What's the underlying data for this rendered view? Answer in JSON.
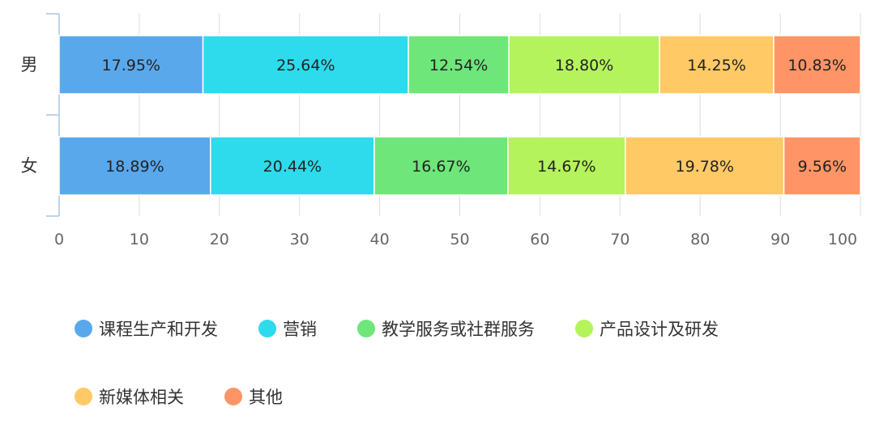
{
  "chart_data": {
    "type": "bar",
    "orientation": "horizontal",
    "stacked": true,
    "categories": [
      "男",
      "女"
    ],
    "series": [
      {
        "name": "课程生产和开发",
        "color": "#5aa8ec",
        "values": [
          17.95,
          18.89
        ],
        "labels": [
          "17.95%",
          "18.89%"
        ]
      },
      {
        "name": "营销",
        "color": "#2ddbec",
        "values": [
          25.64,
          20.44
        ],
        "labels": [
          "25.64%",
          "20.44%"
        ]
      },
      {
        "name": "教学服务或社群服务",
        "color": "#6ee679",
        "values": [
          12.54,
          16.67
        ],
        "labels": [
          "12.54%",
          "16.67%"
        ]
      },
      {
        "name": "产品设计及研发",
        "color": "#b4f35c",
        "values": [
          18.8,
          14.67
        ],
        "labels": [
          "18.80%",
          "14.67%"
        ]
      },
      {
        "name": "新媒体相关",
        "color": "#ffc966",
        "values": [
          14.25,
          19.78
        ],
        "labels": [
          "14.25%",
          "19.78%"
        ]
      },
      {
        "name": "其他",
        "color": "#ff9566",
        "values": [
          10.83,
          9.56
        ],
        "labels": [
          "10.83%",
          "9.56%"
        ]
      }
    ],
    "xlim": [
      0,
      100
    ],
    "xticks": [
      "0",
      "10",
      "20",
      "30",
      "40",
      "50",
      "60",
      "70",
      "80",
      "90",
      "100"
    ],
    "grid": true,
    "legend_position": "bottom"
  }
}
